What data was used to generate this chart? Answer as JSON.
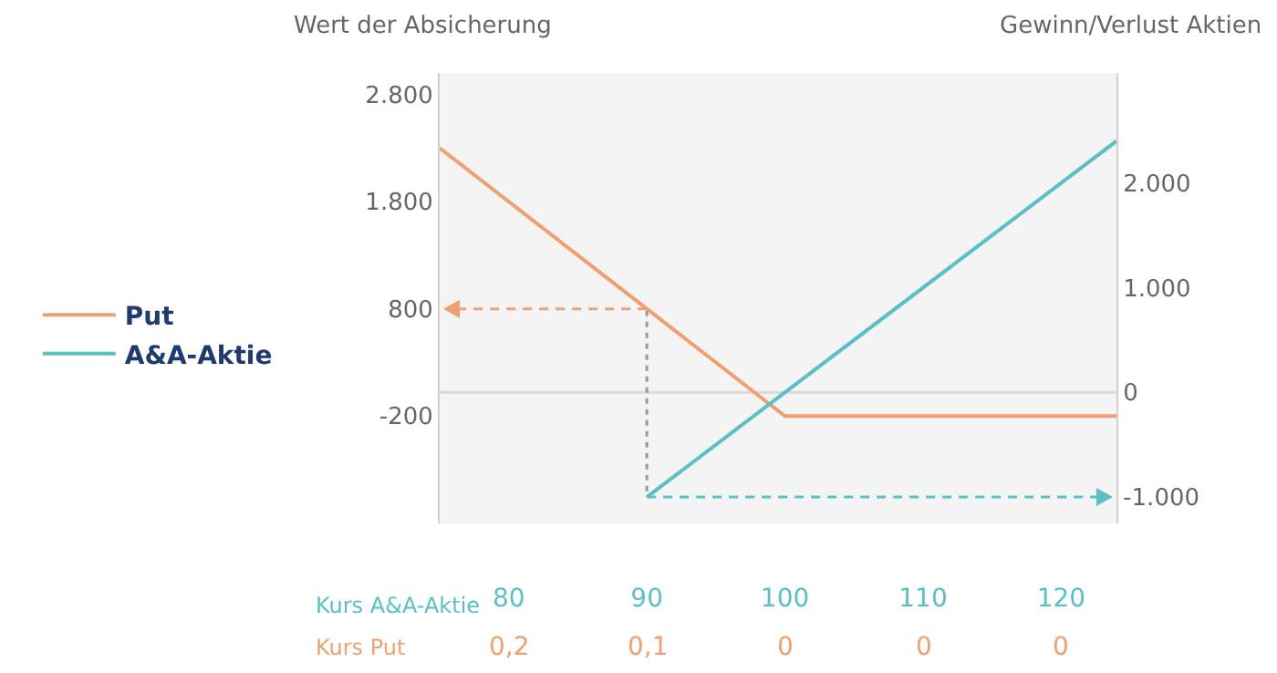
{
  "chart_data": {
    "type": "line",
    "ylabel": "Wert der Absicherung",
    "y2label": "Gewinn/Verlust Aktien",
    "xlabel": "Kurs A&A-Aktie",
    "annotations": [
      "Kurs Put",
      "0,2",
      "0,1",
      "0",
      "0",
      "0"
    ],
    "xlim": [
      75,
      124
    ],
    "xticks": [
      80,
      90,
      100,
      110,
      120
    ],
    "ylim": [
      -1200,
      3000
    ],
    "yticks": [
      -200,
      800,
      {
        "value": 1800,
        "label": "1.800"
      },
      {
        "value": 2800,
        "label": "2.800"
      }
    ],
    "y2lim": [
      -1250,
      3050
    ],
    "y2ticks": [
      {
        "value": -1000,
        "label": "-1.000"
      },
      0,
      {
        "value": 1000,
        "label": "1.000"
      },
      {
        "value": 2000,
        "label": "2.000"
      }
    ],
    "grid": false,
    "legend": "left",
    "marker": "none",
    "ref_lines": [
      {
        "axis": "y2",
        "value": 0,
        "color": "#d9d9d9"
      }
    ],
    "series": [
      {
        "name": "Put",
        "color": "#f0a070",
        "x": [
          75,
          90,
          100,
          124
        ],
        "values": [
          2300,
          800,
          -200,
          -200
        ]
      },
      {
        "name": "A&A-Aktie",
        "color": "#5bbfc4",
        "axis": "y2",
        "x": [
          90,
          124
        ],
        "values": [
          -1000,
          2400
        ]
      },
      {
        "color": "#999999",
        "line_style": "dotted",
        "axis": "y2",
        "x": [
          90,
          90
        ],
        "values": [
          780,
          -1000
        ]
      }
    ]
  }
}
